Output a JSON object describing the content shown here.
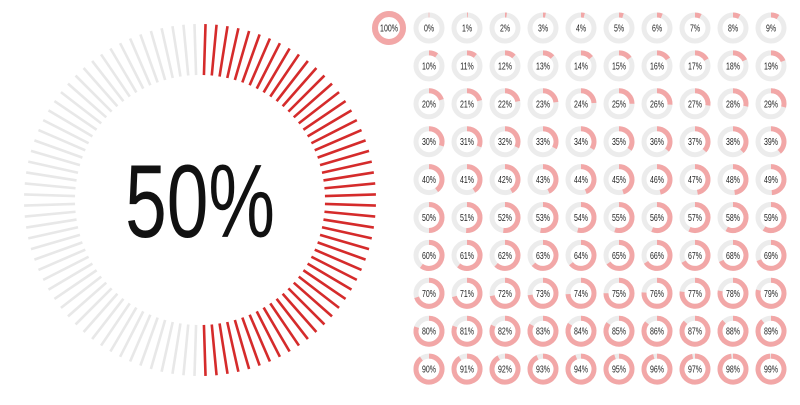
{
  "big": {
    "label": "50%",
    "value": 50
  },
  "rings": [
    {
      "label": "100%",
      "value": 100
    },
    {
      "label": "0%",
      "value": 0
    },
    {
      "label": "1%",
      "value": 1
    },
    {
      "label": "2%",
      "value": 2
    },
    {
      "label": "3%",
      "value": 3
    },
    {
      "label": "4%",
      "value": 4
    },
    {
      "label": "5%",
      "value": 5
    },
    {
      "label": "6%",
      "value": 6
    },
    {
      "label": "7%",
      "value": 7
    },
    {
      "label": "8%",
      "value": 8
    },
    {
      "label": "9%",
      "value": 9
    },
    {
      "label": "10%",
      "value": 10
    },
    {
      "label": "11%",
      "value": 11
    },
    {
      "label": "12%",
      "value": 12
    },
    {
      "label": "13%",
      "value": 13
    },
    {
      "label": "14%",
      "value": 14
    },
    {
      "label": "15%",
      "value": 15
    },
    {
      "label": "16%",
      "value": 16
    },
    {
      "label": "17%",
      "value": 17
    },
    {
      "label": "18%",
      "value": 18
    },
    {
      "label": "19%",
      "value": 19
    },
    {
      "label": "20%",
      "value": 20
    },
    {
      "label": "21%",
      "value": 21
    },
    {
      "label": "22%",
      "value": 22
    },
    {
      "label": "23%",
      "value": 23
    },
    {
      "label": "24%",
      "value": 24
    },
    {
      "label": "25%",
      "value": 25
    },
    {
      "label": "26%",
      "value": 26
    },
    {
      "label": "27%",
      "value": 27
    },
    {
      "label": "28%",
      "value": 28
    },
    {
      "label": "29%",
      "value": 29
    },
    {
      "label": "30%",
      "value": 30
    },
    {
      "label": "31%",
      "value": 31
    },
    {
      "label": "32%",
      "value": 32
    },
    {
      "label": "33%",
      "value": 33
    },
    {
      "label": "34%",
      "value": 34
    },
    {
      "label": "35%",
      "value": 35
    },
    {
      "label": "36%",
      "value": 36
    },
    {
      "label": "37%",
      "value": 37
    },
    {
      "label": "38%",
      "value": 38
    },
    {
      "label": "39%",
      "value": 39
    },
    {
      "label": "40%",
      "value": 40
    },
    {
      "label": "41%",
      "value": 41
    },
    {
      "label": "42%",
      "value": 42
    },
    {
      "label": "43%",
      "value": 43
    },
    {
      "label": "44%",
      "value": 44
    },
    {
      "label": "45%",
      "value": 45
    },
    {
      "label": "46%",
      "value": 46
    },
    {
      "label": "47%",
      "value": 47
    },
    {
      "label": "48%",
      "value": 48
    },
    {
      "label": "49%",
      "value": 49
    },
    {
      "label": "50%",
      "value": 50
    },
    {
      "label": "51%",
      "value": 51
    },
    {
      "label": "52%",
      "value": 52
    },
    {
      "label": "53%",
      "value": 53
    },
    {
      "label": "54%",
      "value": 54
    },
    {
      "label": "55%",
      "value": 55
    },
    {
      "label": "56%",
      "value": 56
    },
    {
      "label": "57%",
      "value": 57
    },
    {
      "label": "58%",
      "value": 58
    },
    {
      "label": "59%",
      "value": 59
    },
    {
      "label": "60%",
      "value": 60
    },
    {
      "label": "61%",
      "value": 61
    },
    {
      "label": "62%",
      "value": 62
    },
    {
      "label": "63%",
      "value": 63
    },
    {
      "label": "64%",
      "value": 64
    },
    {
      "label": "65%",
      "value": 65
    },
    {
      "label": "66%",
      "value": 66
    },
    {
      "label": "67%",
      "value": 67
    },
    {
      "label": "68%",
      "value": 68
    },
    {
      "label": "69%",
      "value": 69
    },
    {
      "label": "70%",
      "value": 70
    },
    {
      "label": "71%",
      "value": 71
    },
    {
      "label": "72%",
      "value": 72
    },
    {
      "label": "73%",
      "value": 73
    },
    {
      "label": "74%",
      "value": 74
    },
    {
      "label": "75%",
      "value": 75
    },
    {
      "label": "76%",
      "value": 76
    },
    {
      "label": "77%",
      "value": 77
    },
    {
      "label": "78%",
      "value": 78
    },
    {
      "label": "79%",
      "value": 79
    },
    {
      "label": "80%",
      "value": 80
    },
    {
      "label": "81%",
      "value": 81
    },
    {
      "label": "82%",
      "value": 82
    },
    {
      "label": "83%",
      "value": 83
    },
    {
      "label": "84%",
      "value": 84
    },
    {
      "label": "85%",
      "value": 85
    },
    {
      "label": "86%",
      "value": 86
    },
    {
      "label": "87%",
      "value": 87
    },
    {
      "label": "88%",
      "value": 88
    },
    {
      "label": "89%",
      "value": 89
    },
    {
      "label": "90%",
      "value": 90
    },
    {
      "label": "91%",
      "value": 91
    },
    {
      "label": "92%",
      "value": 92
    },
    {
      "label": "93%",
      "value": 93
    },
    {
      "label": "94%",
      "value": 94
    },
    {
      "label": "95%",
      "value": 95
    },
    {
      "label": "96%",
      "value": 96
    },
    {
      "label": "97%",
      "value": 97
    },
    {
      "label": "98%",
      "value": 98
    },
    {
      "label": "99%",
      "value": 99
    }
  ]
}
